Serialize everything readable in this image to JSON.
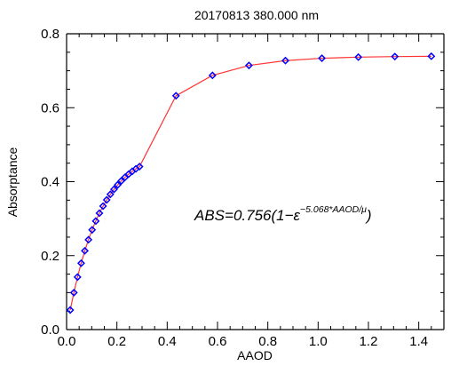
{
  "chart_data": {
    "type": "scatter",
    "title": "20170813 380.000 nm",
    "xlabel": "AAOD",
    "ylabel": "Absorptance",
    "xlim": [
      0.0,
      1.5
    ],
    "ylim": [
      0.0,
      0.8
    ],
    "x_ticks": [
      "0.0",
      "0.2",
      "0.4",
      "0.6",
      "0.8",
      "1.0",
      "1.2",
      "1.4"
    ],
    "y_ticks": [
      "0.0",
      "0.2",
      "0.4",
      "0.6",
      "0.8"
    ],
    "grid": false,
    "series": [
      {
        "marker": "diamond",
        "marker_color": "#0000ff",
        "line_color": "#ff3333",
        "x": [
          0.0145,
          0.029,
          0.0435,
          0.058,
          0.0725,
          0.087,
          0.1015,
          0.116,
          0.1305,
          0.145,
          0.1595,
          0.174,
          0.1885,
          0.203,
          0.2175,
          0.232,
          0.2465,
          0.261,
          0.2755,
          0.29,
          0.435,
          0.58,
          0.725,
          0.87,
          1.015,
          1.16,
          1.305,
          1.45
        ],
        "y": [
          0.0528,
          0.0999,
          0.142,
          0.1795,
          0.2131,
          0.243,
          0.2697,
          0.2935,
          0.3148,
          0.3338,
          0.3507,
          0.3658,
          0.3793,
          0.3913,
          0.4021,
          0.4117,
          0.4202,
          0.4279,
          0.4347,
          0.4408,
          0.6323,
          0.6875,
          0.7143,
          0.7274,
          0.7338,
          0.7368,
          0.7383,
          0.7391
        ]
      }
    ],
    "annotation": {
      "prefix": "ABS=0.756(1−ε",
      "exponent": "−5.068*AAOD/μ",
      "suffix": ")"
    }
  }
}
